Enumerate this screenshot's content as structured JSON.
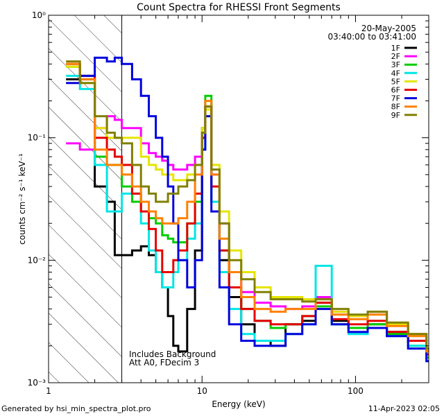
{
  "footer": {
    "generated_by": "Generated by hsi_min_spectra_plot.pro",
    "render_date": "11-Apr-2023 02:05"
  },
  "chart_data": {
    "type": "line",
    "title": "Count Spectra for RHESSI Front Segments",
    "date": "20-May-2005",
    "time_range": "03:40:00 to 03:41:00",
    "xlabel": "Energy (keV)",
    "ylabel": "counts cm⁻² s⁻¹ keV⁻¹",
    "x_scale": "log",
    "y_scale": "log",
    "xlim": [
      1,
      300
    ],
    "ylim": [
      0.001,
      1
    ],
    "x_ticks": [
      1,
      10,
      100
    ],
    "x_tick_labels": [
      "1",
      "10",
      "100"
    ],
    "y_ticks": [
      0.001,
      0.01,
      0.1,
      1
    ],
    "y_tick_labels": [
      "10⁻³",
      "10⁻²",
      "10⁻¹",
      "10⁰"
    ],
    "legend_position": "top-right",
    "hatched_region": {
      "x_from": 1,
      "x_to": 3
    },
    "annotations": [
      "Includes Background",
      "Att A0, FDecim 3"
    ],
    "series": [
      {
        "name": "1F",
        "color": "#000000",
        "points": [
          [
            1.3,
            0.3
          ],
          [
            1.6,
            0.3
          ],
          [
            2.0,
            0.04
          ],
          [
            2.4,
            0.03
          ],
          [
            2.7,
            0.011
          ],
          [
            3.0,
            0.011
          ],
          [
            3.5,
            0.012
          ],
          [
            4.0,
            0.013
          ],
          [
            4.5,
            0.011
          ],
          [
            5.0,
            0.008
          ],
          [
            5.5,
            0.006
          ],
          [
            6.0,
            0.0035
          ],
          [
            6.5,
            0.002
          ],
          [
            7.0,
            0.0018
          ],
          [
            8.0,
            0.004
          ],
          [
            9.0,
            0.012
          ],
          [
            10.0,
            0.1
          ],
          [
            10.5,
            0.2
          ],
          [
            11.5,
            0.03
          ],
          [
            13,
            0.01
          ],
          [
            15,
            0.005
          ],
          [
            18,
            0.003
          ],
          [
            22,
            0.0022
          ],
          [
            28,
            0.002
          ],
          [
            35,
            0.003
          ],
          [
            45,
            0.0032
          ],
          [
            55,
            0.0045
          ],
          [
            70,
            0.0032
          ],
          [
            90,
            0.0028
          ],
          [
            120,
            0.003
          ],
          [
            160,
            0.0026
          ],
          [
            220,
            0.0022
          ],
          [
            290,
            0.0018
          ]
        ]
      },
      {
        "name": "2F",
        "color": "#ff00ff",
        "points": [
          [
            1.3,
            0.09
          ],
          [
            1.6,
            0.08
          ],
          [
            2.0,
            0.12
          ],
          [
            2.4,
            0.15
          ],
          [
            2.7,
            0.14
          ],
          [
            3.0,
            0.12
          ],
          [
            3.5,
            0.12
          ],
          [
            4.0,
            0.09
          ],
          [
            4.5,
            0.075
          ],
          [
            5.0,
            0.07
          ],
          [
            5.5,
            0.065
          ],
          [
            6.0,
            0.06
          ],
          [
            6.5,
            0.055
          ],
          [
            7.0,
            0.055
          ],
          [
            8.0,
            0.06
          ],
          [
            9.0,
            0.07
          ],
          [
            10.0,
            0.12
          ],
          [
            10.5,
            0.18
          ],
          [
            11.5,
            0.05
          ],
          [
            13,
            0.02
          ],
          [
            15,
            0.008
          ],
          [
            18,
            0.0055
          ],
          [
            22,
            0.0045
          ],
          [
            28,
            0.0042
          ],
          [
            35,
            0.004
          ],
          [
            45,
            0.0042
          ],
          [
            55,
            0.005
          ],
          [
            70,
            0.0038
          ],
          [
            90,
            0.0035
          ],
          [
            120,
            0.0038
          ],
          [
            160,
            0.003
          ],
          [
            220,
            0.0025
          ],
          [
            290,
            0.0018
          ]
        ]
      },
      {
        "name": "3F",
        "color": "#00cc00",
        "points": [
          [
            1.3,
            0.38
          ],
          [
            1.6,
            0.32
          ],
          [
            2.0,
            0.07
          ],
          [
            2.4,
            0.06
          ],
          [
            2.7,
            0.06
          ],
          [
            3.0,
            0.04
          ],
          [
            3.5,
            0.03
          ],
          [
            4.0,
            0.025
          ],
          [
            4.5,
            0.022
          ],
          [
            5.0,
            0.02
          ],
          [
            5.5,
            0.016
          ],
          [
            6.0,
            0.015
          ],
          [
            6.5,
            0.014
          ],
          [
            7.0,
            0.014
          ],
          [
            8.0,
            0.02
          ],
          [
            9.0,
            0.03
          ],
          [
            10.0,
            0.12
          ],
          [
            10.5,
            0.22
          ],
          [
            11.5,
            0.04
          ],
          [
            13,
            0.012
          ],
          [
            15,
            0.006
          ],
          [
            18,
            0.004
          ],
          [
            22,
            0.0032
          ],
          [
            28,
            0.0028
          ],
          [
            35,
            0.003
          ],
          [
            45,
            0.0035
          ],
          [
            55,
            0.0042
          ],
          [
            70,
            0.003
          ],
          [
            90,
            0.0028
          ],
          [
            120,
            0.003
          ],
          [
            160,
            0.0025
          ],
          [
            220,
            0.002
          ],
          [
            290,
            0.0016
          ]
        ]
      },
      {
        "name": "4F",
        "color": "#00e5e5",
        "points": [
          [
            1.3,
            0.32
          ],
          [
            1.6,
            0.25
          ],
          [
            2.0,
            0.06
          ],
          [
            2.4,
            0.025
          ],
          [
            2.7,
            0.025
          ],
          [
            3.0,
            0.035
          ],
          [
            3.5,
            0.035
          ],
          [
            4.0,
            0.02
          ],
          [
            4.5,
            0.012
          ],
          [
            5.0,
            0.008
          ],
          [
            5.5,
            0.006
          ],
          [
            6.0,
            0.006
          ],
          [
            6.5,
            0.008
          ],
          [
            7.0,
            0.01
          ],
          [
            8.0,
            0.015
          ],
          [
            9.0,
            0.02
          ],
          [
            10.0,
            0.08
          ],
          [
            10.5,
            0.15
          ],
          [
            11.5,
            0.03
          ],
          [
            13,
            0.008
          ],
          [
            15,
            0.004
          ],
          [
            18,
            0.0025
          ],
          [
            22,
            0.0022
          ],
          [
            28,
            0.0022
          ],
          [
            35,
            0.0025
          ],
          [
            45,
            0.003
          ],
          [
            55,
            0.009
          ],
          [
            70,
            0.003
          ],
          [
            90,
            0.0025
          ],
          [
            120,
            0.0028
          ],
          [
            160,
            0.0024
          ],
          [
            220,
            0.002
          ],
          [
            290,
            0.0015
          ]
        ]
      },
      {
        "name": "5F",
        "color": "#e5e500",
        "points": [
          [
            1.3,
            0.38
          ],
          [
            1.6,
            0.28
          ],
          [
            2.0,
            0.12
          ],
          [
            2.4,
            0.1
          ],
          [
            2.7,
            0.1
          ],
          [
            3.0,
            0.1
          ],
          [
            3.5,
            0.1
          ],
          [
            4.0,
            0.07
          ],
          [
            4.5,
            0.06
          ],
          [
            5.0,
            0.055
          ],
          [
            5.5,
            0.05
          ],
          [
            6.0,
            0.05
          ],
          [
            6.5,
            0.045
          ],
          [
            7.0,
            0.045
          ],
          [
            8.0,
            0.05
          ],
          [
            9.0,
            0.06
          ],
          [
            10.0,
            0.12
          ],
          [
            10.5,
            0.17
          ],
          [
            11.5,
            0.06
          ],
          [
            13,
            0.025
          ],
          [
            15,
            0.012
          ],
          [
            18,
            0.008
          ],
          [
            22,
            0.006
          ],
          [
            28,
            0.005
          ],
          [
            35,
            0.005
          ],
          [
            45,
            0.0048
          ],
          [
            55,
            0.0048
          ],
          [
            70,
            0.0038
          ],
          [
            90,
            0.0035
          ],
          [
            120,
            0.0038
          ],
          [
            160,
            0.003
          ],
          [
            220,
            0.0025
          ],
          [
            290,
            0.0018
          ]
        ]
      },
      {
        "name": "6F",
        "color": "#e50000",
        "points": [
          [
            1.3,
            0.4
          ],
          [
            1.6,
            0.32
          ],
          [
            2.0,
            0.1
          ],
          [
            2.4,
            0.08
          ],
          [
            2.7,
            0.07
          ],
          [
            3.0,
            0.06
          ],
          [
            3.5,
            0.035
          ],
          [
            4.0,
            0.025
          ],
          [
            4.5,
            0.018
          ],
          [
            5.0,
            0.012
          ],
          [
            5.5,
            0.008
          ],
          [
            6.0,
            0.008
          ],
          [
            6.5,
            0.01
          ],
          [
            7.0,
            0.012
          ],
          [
            8.0,
            0.02
          ],
          [
            9.0,
            0.035
          ],
          [
            10.0,
            0.1
          ],
          [
            10.5,
            0.18
          ],
          [
            11.5,
            0.04
          ],
          [
            13,
            0.012
          ],
          [
            15,
            0.006
          ],
          [
            18,
            0.004
          ],
          [
            22,
            0.0032
          ],
          [
            28,
            0.003
          ],
          [
            35,
            0.003
          ],
          [
            45,
            0.0035
          ],
          [
            55,
            0.0045
          ],
          [
            70,
            0.0033
          ],
          [
            90,
            0.003
          ],
          [
            120,
            0.0032
          ],
          [
            160,
            0.0026
          ],
          [
            220,
            0.0022
          ],
          [
            290,
            0.0017
          ]
        ]
      },
      {
        "name": "7F",
        "color": "#0000dd",
        "points": [
          [
            1.3,
            0.28
          ],
          [
            1.6,
            0.32
          ],
          [
            2.0,
            0.45
          ],
          [
            2.4,
            0.42
          ],
          [
            2.7,
            0.45
          ],
          [
            3.0,
            0.4
          ],
          [
            3.5,
            0.3
          ],
          [
            4.0,
            0.22
          ],
          [
            4.5,
            0.15
          ],
          [
            5.0,
            0.1
          ],
          [
            5.5,
            0.07
          ],
          [
            6.0,
            0.04
          ],
          [
            6.5,
            0.02
          ],
          [
            7.0,
            0.01
          ],
          [
            8.0,
            0.006
          ],
          [
            9.0,
            0.01
          ],
          [
            10.0,
            0.08
          ],
          [
            10.5,
            0.15
          ],
          [
            11.5,
            0.025
          ],
          [
            13,
            0.006
          ],
          [
            15,
            0.003
          ],
          [
            18,
            0.0022
          ],
          [
            22,
            0.002
          ],
          [
            28,
            0.002
          ],
          [
            35,
            0.0025
          ],
          [
            45,
            0.003
          ],
          [
            55,
            0.004
          ],
          [
            70,
            0.003
          ],
          [
            90,
            0.0026
          ],
          [
            120,
            0.0028
          ],
          [
            160,
            0.0024
          ],
          [
            220,
            0.0019
          ],
          [
            290,
            0.0015
          ]
        ]
      },
      {
        "name": "8F",
        "color": "#ff8000",
        "points": [
          [
            1.3,
            0.4
          ],
          [
            1.6,
            0.3
          ],
          [
            2.0,
            0.08
          ],
          [
            2.4,
            0.06
          ],
          [
            2.7,
            0.06
          ],
          [
            3.0,
            0.05
          ],
          [
            3.5,
            0.04
          ],
          [
            4.0,
            0.03
          ],
          [
            4.5,
            0.025
          ],
          [
            5.0,
            0.022
          ],
          [
            5.5,
            0.02
          ],
          [
            6.0,
            0.02
          ],
          [
            6.5,
            0.02
          ],
          [
            7.0,
            0.022
          ],
          [
            8.0,
            0.03
          ],
          [
            9.0,
            0.05
          ],
          [
            10.0,
            0.11
          ],
          [
            10.5,
            0.2
          ],
          [
            11.5,
            0.05
          ],
          [
            13,
            0.015
          ],
          [
            15,
            0.008
          ],
          [
            18,
            0.005
          ],
          [
            22,
            0.004
          ],
          [
            28,
            0.0038
          ],
          [
            35,
            0.004
          ],
          [
            45,
            0.004
          ],
          [
            55,
            0.0048
          ],
          [
            70,
            0.0036
          ],
          [
            90,
            0.0033
          ],
          [
            120,
            0.0036
          ],
          [
            160,
            0.0029
          ],
          [
            220,
            0.0024
          ],
          [
            290,
            0.0018
          ]
        ]
      },
      {
        "name": "9F",
        "color": "#808000",
        "points": [
          [
            1.3,
            0.42
          ],
          [
            1.6,
            0.28
          ],
          [
            2.0,
            0.15
          ],
          [
            2.4,
            0.11
          ],
          [
            2.7,
            0.1
          ],
          [
            3.0,
            0.09
          ],
          [
            3.5,
            0.06
          ],
          [
            4.0,
            0.04
          ],
          [
            4.5,
            0.035
          ],
          [
            5.0,
            0.03
          ],
          [
            5.5,
            0.03
          ],
          [
            6.0,
            0.035
          ],
          [
            6.5,
            0.035
          ],
          [
            7.0,
            0.04
          ],
          [
            8.0,
            0.045
          ],
          [
            9.0,
            0.06
          ],
          [
            10.0,
            0.11
          ],
          [
            10.5,
            0.18
          ],
          [
            11.5,
            0.055
          ],
          [
            13,
            0.02
          ],
          [
            15,
            0.01
          ],
          [
            18,
            0.007
          ],
          [
            22,
            0.0055
          ],
          [
            28,
            0.0048
          ],
          [
            35,
            0.0048
          ],
          [
            45,
            0.0046
          ],
          [
            55,
            0.0048
          ],
          [
            70,
            0.004
          ],
          [
            90,
            0.0036
          ],
          [
            120,
            0.0038
          ],
          [
            160,
            0.0031
          ],
          [
            220,
            0.0025
          ],
          [
            290,
            0.0019
          ]
        ]
      }
    ]
  }
}
